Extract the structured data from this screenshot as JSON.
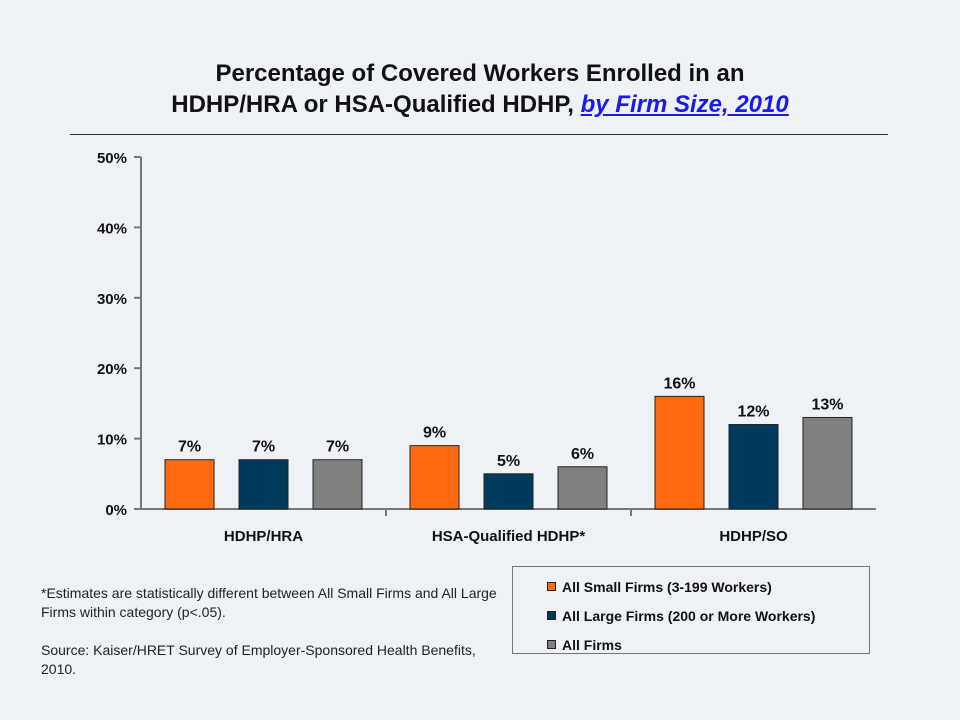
{
  "title": {
    "line1": "Percentage of Covered Workers Enrolled in an",
    "line2_plain": "HDHP/HRA or HSA-Qualified HDHP, ",
    "line2_link": "by Firm Size, 2010"
  },
  "chart_data": {
    "type": "bar",
    "categories": [
      "HDHP/HRA",
      "HSA-Qualified HDHP*",
      "HDHP/SO"
    ],
    "series": [
      {
        "name": "All Small Firms (3-199 Workers)",
        "color": "#ff6a10",
        "values": [
          7,
          9,
          16
        ]
      },
      {
        "name": "All Large Firms (200 or More Workers)",
        "color": "#003a5c",
        "values": [
          7,
          5,
          12
        ]
      },
      {
        "name": "All Firms",
        "color": "#808080",
        "values": [
          7,
          6,
          13
        ]
      }
    ],
    "data_labels": [
      [
        "7%",
        "9%",
        "16%"
      ],
      [
        "7%",
        "5%",
        "12%"
      ],
      [
        "7%",
        "6%",
        "13%"
      ]
    ],
    "yticks": [
      0,
      10,
      20,
      30,
      40,
      50
    ],
    "ytick_labels": [
      "0%",
      "10%",
      "20%",
      "30%",
      "40%",
      "50%"
    ],
    "ylim": [
      0,
      50
    ],
    "legend_position": "bottom-right",
    "grid": false
  },
  "notes": {
    "footnote": "*Estimates are statistically different between All Small Firms and All Large Firms within category (p<.05).",
    "source": "Source:  Kaiser/HRET Survey of Employer-Sponsored Health Benefits, 2010."
  }
}
